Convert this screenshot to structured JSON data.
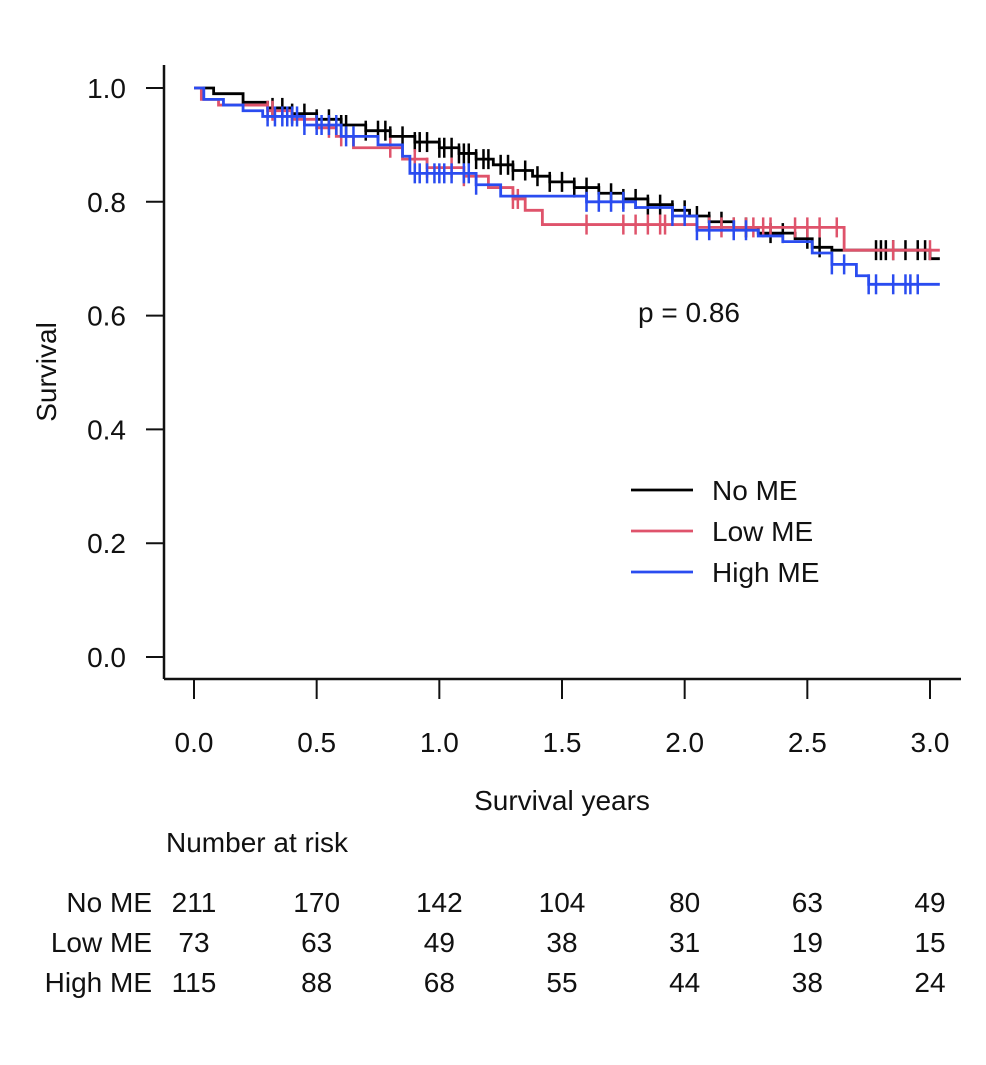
{
  "chart_data": {
    "type": "line",
    "subtype": "kaplan-meier step",
    "title": "",
    "xlabel": "Survival years",
    "ylabel": "Survival",
    "xlim": [
      0,
      3.0
    ],
    "ylim": [
      0,
      1.0
    ],
    "x_ticks": [
      0.0,
      0.5,
      1.0,
      1.5,
      2.0,
      2.5,
      3.0
    ],
    "x_tick_labels": [
      "0.0",
      "0.5",
      "1.0",
      "1.5",
      "2.0",
      "2.5",
      "3.0"
    ],
    "y_ticks": [
      0.0,
      0.2,
      0.4,
      0.6,
      0.8,
      1.0
    ],
    "y_tick_labels": [
      "0.0",
      "0.2",
      "0.4",
      "0.6",
      "0.8",
      "1.0"
    ],
    "grid": false,
    "annotation": "p = 0.86",
    "legend_position": "right-middle",
    "series": [
      {
        "name": "No ME",
        "color": "#000000",
        "steps": [
          [
            0,
            1.0
          ],
          [
            0.08,
            0.99
          ],
          [
            0.2,
            0.975
          ],
          [
            0.3,
            0.965
          ],
          [
            0.4,
            0.955
          ],
          [
            0.5,
            0.945
          ],
          [
            0.6,
            0.935
          ],
          [
            0.7,
            0.925
          ],
          [
            0.8,
            0.915
          ],
          [
            0.9,
            0.905
          ],
          [
            1.0,
            0.895
          ],
          [
            1.08,
            0.885
          ],
          [
            1.15,
            0.875
          ],
          [
            1.22,
            0.865
          ],
          [
            1.3,
            0.855
          ],
          [
            1.38,
            0.845
          ],
          [
            1.45,
            0.835
          ],
          [
            1.55,
            0.825
          ],
          [
            1.65,
            0.815
          ],
          [
            1.75,
            0.805
          ],
          [
            1.85,
            0.795
          ],
          [
            1.95,
            0.785
          ],
          [
            2.02,
            0.775
          ],
          [
            2.1,
            0.765
          ],
          [
            2.2,
            0.755
          ],
          [
            2.3,
            0.745
          ],
          [
            2.45,
            0.735
          ],
          [
            2.52,
            0.72
          ],
          [
            2.6,
            0.715
          ],
          [
            3.0,
            0.7
          ],
          [
            3.04,
            0.7
          ]
        ],
        "censor_times": [
          0.32,
          0.36,
          0.4,
          0.45,
          0.5,
          0.55,
          0.6,
          0.62,
          0.7,
          0.75,
          0.78,
          0.8,
          0.85,
          0.9,
          0.92,
          0.95,
          1.0,
          1.02,
          1.05,
          1.08,
          1.1,
          1.12,
          1.15,
          1.18,
          1.2,
          1.25,
          1.28,
          1.3,
          1.35,
          1.4,
          1.45,
          1.5,
          1.55,
          1.6,
          1.65,
          1.7,
          1.75,
          1.8,
          1.85,
          1.9,
          1.95,
          2.0,
          2.05,
          2.1,
          2.15,
          2.2,
          2.25,
          2.35,
          2.4,
          2.5,
          2.55,
          2.78,
          2.8,
          2.82,
          2.85,
          2.9,
          2.95,
          2.98
        ]
      },
      {
        "name": "Low ME",
        "color": "#DF536B",
        "steps": [
          [
            0,
            1.0
          ],
          [
            0.03,
            0.98
          ],
          [
            0.1,
            0.97
          ],
          [
            0.3,
            0.96
          ],
          [
            0.4,
            0.945
          ],
          [
            0.5,
            0.93
          ],
          [
            0.58,
            0.915
          ],
          [
            0.65,
            0.895
          ],
          [
            0.85,
            0.875
          ],
          [
            0.95,
            0.86
          ],
          [
            1.1,
            0.845
          ],
          [
            1.2,
            0.825
          ],
          [
            1.3,
            0.805
          ],
          [
            1.35,
            0.785
          ],
          [
            1.42,
            0.76
          ],
          [
            2.05,
            0.755
          ],
          [
            2.65,
            0.715
          ],
          [
            3.04,
            0.715
          ]
        ],
        "censor_times": [
          0.3,
          0.32,
          0.55,
          0.6,
          0.8,
          0.9,
          0.95,
          1.05,
          1.1,
          1.3,
          1.32,
          1.6,
          1.75,
          1.8,
          1.85,
          1.9,
          1.92,
          2.1,
          2.15,
          2.2,
          2.25,
          2.28,
          2.32,
          2.35,
          2.45,
          2.5,
          2.55,
          2.62,
          2.85,
          3.0
        ]
      },
      {
        "name": "High ME",
        "color": "#2A4CF0",
        "steps": [
          [
            0,
            1.0
          ],
          [
            0.04,
            0.98
          ],
          [
            0.12,
            0.97
          ],
          [
            0.2,
            0.96
          ],
          [
            0.28,
            0.95
          ],
          [
            0.45,
            0.935
          ],
          [
            0.6,
            0.915
          ],
          [
            0.75,
            0.9
          ],
          [
            0.85,
            0.88
          ],
          [
            0.88,
            0.85
          ],
          [
            1.15,
            0.83
          ],
          [
            1.25,
            0.81
          ],
          [
            1.6,
            0.8
          ],
          [
            1.8,
            0.79
          ],
          [
            1.95,
            0.775
          ],
          [
            2.05,
            0.75
          ],
          [
            2.3,
            0.74
          ],
          [
            2.4,
            0.73
          ],
          [
            2.52,
            0.71
          ],
          [
            2.6,
            0.69
          ],
          [
            2.7,
            0.67
          ],
          [
            2.75,
            0.655
          ],
          [
            3.04,
            0.655
          ]
        ],
        "censor_times": [
          0.3,
          0.33,
          0.36,
          0.38,
          0.4,
          0.42,
          0.45,
          0.5,
          0.52,
          0.55,
          0.58,
          0.62,
          0.65,
          0.9,
          0.92,
          0.95,
          0.98,
          1.0,
          1.02,
          1.05,
          1.1,
          1.12,
          1.15,
          1.6,
          1.65,
          1.7,
          1.75,
          1.95,
          2.0,
          2.05,
          2.1,
          2.2,
          2.25,
          2.6,
          2.65,
          2.75,
          2.78,
          2.85,
          2.9,
          2.92,
          2.95
        ]
      }
    ],
    "risk_table": {
      "title": "Number at risk",
      "times": [
        0.0,
        0.5,
        1.0,
        1.5,
        2.0,
        2.5,
        3.0
      ],
      "rows": [
        {
          "group": "No ME",
          "values": [
            211,
            170,
            142,
            104,
            80,
            63,
            49
          ]
        },
        {
          "group": "Low ME",
          "values": [
            73,
            63,
            49,
            38,
            31,
            19,
            15
          ]
        },
        {
          "group": "High ME",
          "values": [
            115,
            88,
            68,
            55,
            44,
            38,
            24
          ]
        }
      ]
    }
  }
}
